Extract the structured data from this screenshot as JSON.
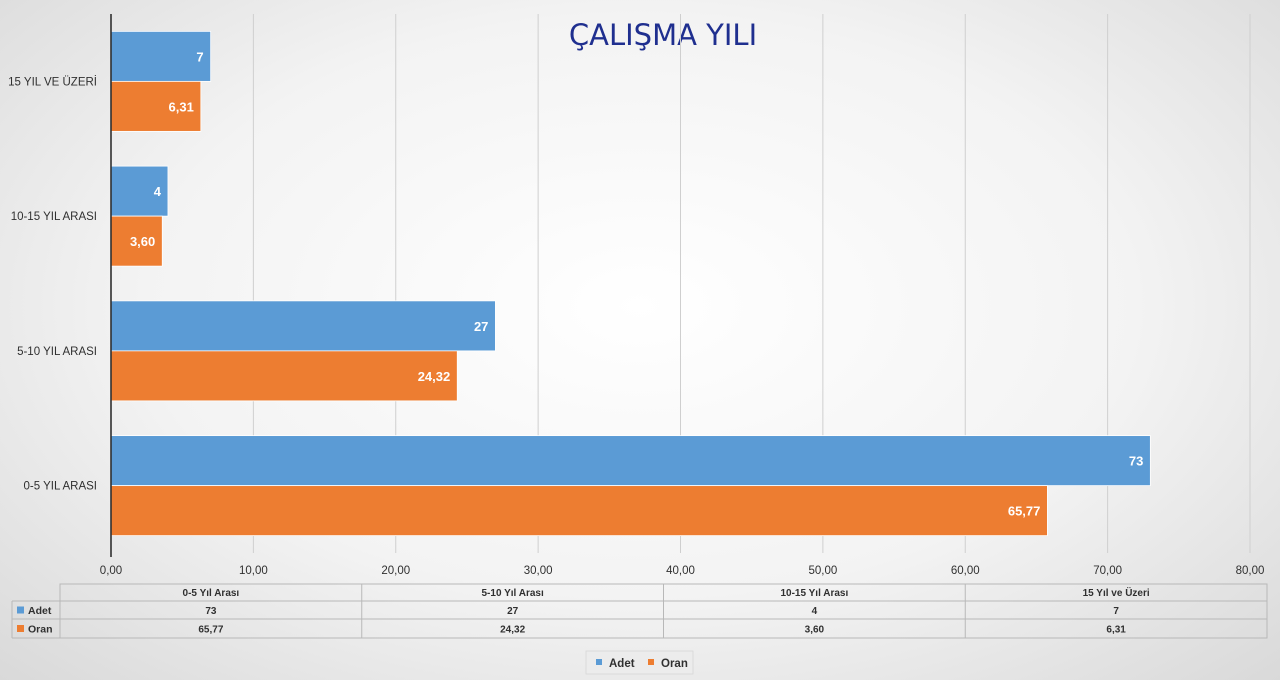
{
  "chart_data": {
    "type": "bar",
    "orientation": "horizontal",
    "title": "ÇALIŞMA YILI",
    "categories": [
      "0-5 YIL ARASI",
      "5-10 YIL ARASI",
      "10-15 YIL ARASI",
      "15 YIL VE ÜZERİ"
    ],
    "series": [
      {
        "name": "Adet",
        "color": "#5b9bd5",
        "values": [
          73,
          27,
          4,
          7
        ],
        "labels": [
          "73",
          "27",
          "4",
          "7"
        ]
      },
      {
        "name": "Oran",
        "color": "#ed7d31",
        "values": [
          65.77,
          24.32,
          3.6,
          6.31
        ],
        "labels": [
          "65,77",
          "24,32",
          "3,60",
          "6,31"
        ]
      }
    ],
    "xlim": [
      0,
      80
    ],
    "x_ticks": [
      "0,00",
      "10,00",
      "20,00",
      "30,00",
      "40,00",
      "50,00",
      "60,00",
      "70,00",
      "80,00"
    ],
    "grid": true,
    "data_table": {
      "headers": [
        "0-5 Yıl Arası",
        "5-10 Yıl Arası",
        "10-15 Yıl Arası",
        "15 Yıl ve Üzeri"
      ],
      "rows": [
        {
          "series": "Adet",
          "values": [
            "73",
            "27",
            "4",
            "7"
          ]
        },
        {
          "series": "Oran",
          "values": [
            "65,77",
            "24,32",
            "3,60",
            "6,31"
          ]
        }
      ]
    },
    "legend": {
      "position": "bottom",
      "items": [
        "Adet",
        "Oran"
      ]
    }
  }
}
